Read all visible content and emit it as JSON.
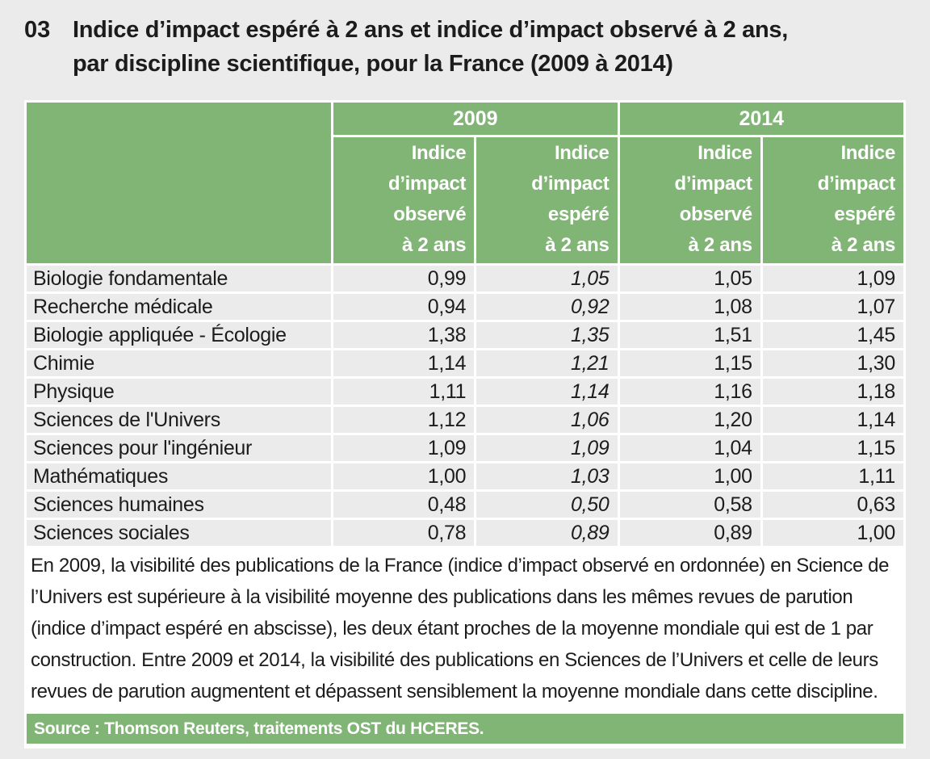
{
  "page": {
    "background_color": "#ebebeb",
    "accent_green": "#81b576",
    "row_gray": "#ebebeb"
  },
  "figure": {
    "number": "03",
    "title": "Indice d’impact espéré à 2 ans et indice d’impact observé à 2 ans,\npar discipline scientifique, pour la France (2009 à 2014)"
  },
  "table": {
    "year_groups": [
      "2009",
      "2014"
    ],
    "subheaders": [
      "Indice\nd’impact\nobservé\nà 2 ans",
      "Indice\nd’impact\nespéré\nà 2 ans",
      "Indice\nd’impact\nobservé\nà 2 ans",
      "Indice\nd’impact\nespéré\nà 2 ans"
    ],
    "rows": [
      {
        "discipline": "Biologie fondamentale",
        "v": [
          "0,99",
          "1,05",
          "1,05",
          "1,09"
        ]
      },
      {
        "discipline": "Recherche médicale",
        "v": [
          "0,94",
          "0,92",
          "1,08",
          "1,07"
        ]
      },
      {
        "discipline": "Biologie appliquée - Écologie",
        "v": [
          "1,38",
          "1,35",
          "1,51",
          "1,45"
        ]
      },
      {
        "discipline": "Chimie",
        "v": [
          "1,14",
          "1,21",
          "1,15",
          "1,30"
        ]
      },
      {
        "discipline": "Physique",
        "v": [
          "1,11",
          "1,14",
          "1,16",
          "1,18"
        ]
      },
      {
        "discipline": "Sciences de l'Univers",
        "v": [
          "1,12",
          "1,06",
          "1,20",
          "1,14"
        ]
      },
      {
        "discipline": "Sciences pour l'ingénieur",
        "v": [
          "1,09",
          "1,09",
          "1,04",
          "1,15"
        ]
      },
      {
        "discipline": "Mathématiques",
        "v": [
          "1,00",
          "1,03",
          "1,00",
          "1,11"
        ]
      },
      {
        "discipline": "Sciences humaines",
        "v": [
          "0,48",
          "0,50",
          "0,58",
          "0,63"
        ]
      },
      {
        "discipline": "Sciences sociales",
        "v": [
          "0,78",
          "0,89",
          "0,89",
          "1,00"
        ]
      }
    ]
  },
  "note": "En 2009, la visibilité des publications de la France (indice d’impact observé en ordonnée) en Science de l’Univers est supérieure à la visibilité moyenne des publications dans les mêmes revues de parution (indice d’impact espéré en abscisse), les deux étant proches de la moyenne mondiale qui est de 1 par construction. Entre 2009 et 2014, la visibilité des publications en Sciences de l’Univers et celle de leurs revues de parution augmentent et dépassent sensiblement la moyenne mondiale dans cette discipline.",
  "source": "Source : Thomson Reuters, traitements OST du HCERES.",
  "chart_data": {
    "type": "table",
    "title": "Indice d’impact espéré à 2 ans et indice d’impact observé à 2 ans, par discipline scientifique, pour la France (2009 à 2014)",
    "categories": [
      "Biologie fondamentale",
      "Recherche médicale",
      "Biologie appliquée - Écologie",
      "Chimie",
      "Physique",
      "Sciences de l'Univers",
      "Sciences pour l'ingénieur",
      "Mathématiques",
      "Sciences humaines",
      "Sciences sociales"
    ],
    "series": [
      {
        "name": "2009 – Indice d’impact observé à 2 ans",
        "values": [
          0.99,
          0.94,
          1.38,
          1.14,
          1.11,
          1.12,
          1.09,
          1.0,
          0.48,
          0.78
        ]
      },
      {
        "name": "2009 – Indice d’impact espéré à 2 ans",
        "values": [
          1.05,
          0.92,
          1.35,
          1.21,
          1.14,
          1.06,
          1.09,
          1.03,
          0.5,
          0.89
        ]
      },
      {
        "name": "2014 – Indice d’impact observé à 2 ans",
        "values": [
          1.05,
          1.08,
          1.51,
          1.15,
          1.16,
          1.2,
          1.04,
          1.0,
          0.58,
          0.89
        ]
      },
      {
        "name": "2014 – Indice d’impact espéré à 2 ans",
        "values": [
          1.09,
          1.07,
          1.45,
          1.3,
          1.18,
          1.14,
          1.15,
          1.11,
          0.63,
          1.0
        ]
      }
    ],
    "legend_position": "column headers",
    "source": "Source : Thomson Reuters, traitements OST du HCERES."
  }
}
